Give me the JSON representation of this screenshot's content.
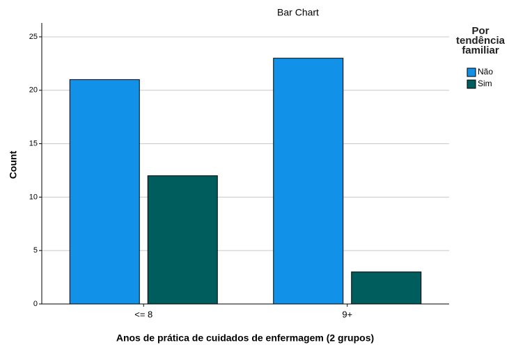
{
  "chart_data": {
    "type": "bar",
    "title": "Bar Chart",
    "x_label": "Anos de prática de cuidados de enfermagem (2 grupos)",
    "y_label": "Count",
    "categories": [
      "<= 8",
      "9+"
    ],
    "series": [
      {
        "name": "Não",
        "color": "#1192e8",
        "values": [
          21,
          23
        ]
      },
      {
        "name": "Sim",
        "color": "#005d5d",
        "values": [
          12,
          3
        ]
      }
    ],
    "legend_title": "Por tendência familiar",
    "legend": "right",
    "ylim": [
      0,
      26.3
    ],
    "yticks": [
      0,
      5,
      10,
      15,
      20,
      25
    ],
    "grid": true
  }
}
